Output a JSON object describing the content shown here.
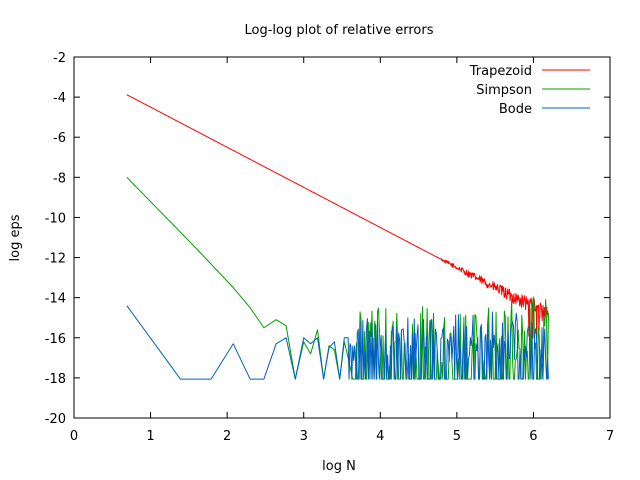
{
  "chart_data": {
    "type": "line",
    "title": "Log-log plot of relative errors",
    "xlabel": "log N",
    "ylabel": "log eps",
    "xlim": [
      0,
      7
    ],
    "ylim": [
      -20,
      -2
    ],
    "xticks": [
      0,
      1,
      2,
      3,
      4,
      5,
      6,
      7
    ],
    "yticks": [
      -20,
      -18,
      -16,
      -14,
      -12,
      -10,
      -8,
      -6,
      -4,
      -2
    ],
    "grid": false,
    "legend_position": "top-right",
    "floor": -18.06,
    "series": [
      {
        "name": "Trapezoid",
        "color": "#ff0000",
        "points": [
          [
            0.69,
            -3.88
          ],
          [
            1.5,
            -5.5
          ],
          [
            2.5,
            -7.5
          ],
          [
            3.5,
            -9.5
          ],
          [
            4.5,
            -11.5
          ],
          [
            5.0,
            -12.5
          ],
          [
            5.5,
            -13.5
          ],
          [
            5.8,
            -14.1
          ],
          [
            6.0,
            -14.4
          ],
          [
            6.2,
            -15.0
          ]
        ],
        "noise": {
          "start_x": 4.8,
          "amplitude": 0.35,
          "floor_start_x": 5.9
        }
      },
      {
        "name": "Simpson",
        "color": "#00a000",
        "points": [
          [
            0.69,
            -8.0
          ],
          [
            1.1,
            -9.6
          ],
          [
            1.61,
            -11.6
          ],
          [
            2.08,
            -13.5
          ],
          [
            2.3,
            -14.5
          ],
          [
            2.48,
            -15.5
          ],
          [
            2.64,
            -15.1
          ],
          [
            2.77,
            -15.4
          ],
          [
            2.89,
            -18.06
          ],
          [
            3.0,
            -16.2
          ],
          [
            3.09,
            -16.8
          ],
          [
            3.18,
            -15.6
          ],
          [
            3.26,
            -18.06
          ],
          [
            3.33,
            -16.4
          ],
          [
            3.4,
            -16.6
          ],
          [
            3.47,
            -18.06
          ],
          [
            3.53,
            -16.2
          ],
          [
            3.58,
            -17.0
          ]
        ],
        "noise": {
          "start_x": 3.64,
          "end_x": 6.2,
          "top_low": -17.5,
          "top_high": -14.6,
          "top_high_end": -13.9,
          "floor_prob": 0.45
        }
      },
      {
        "name": "Bode",
        "color": "#0060c0",
        "points": [
          [
            0.69,
            -14.4
          ],
          [
            1.39,
            -18.06
          ],
          [
            1.79,
            -18.06
          ],
          [
            2.08,
            -16.3
          ],
          [
            2.3,
            -18.06
          ],
          [
            2.48,
            -18.06
          ],
          [
            2.64,
            -16.3
          ],
          [
            2.77,
            -16.0
          ],
          [
            2.89,
            -18.06
          ],
          [
            3.0,
            -16.0
          ],
          [
            3.09,
            -16.3
          ],
          [
            3.18,
            -16.0
          ],
          [
            3.26,
            -18.06
          ],
          [
            3.33,
            -16.5
          ],
          [
            3.4,
            -16.2
          ],
          [
            3.47,
            -18.06
          ],
          [
            3.53,
            -16.0
          ]
        ],
        "noise": {
          "start_x": 3.58,
          "end_x": 6.2,
          "top_low": -17.2,
          "top_high": -15.0,
          "top_high_end": -14.6,
          "floor_prob": 0.4
        }
      }
    ]
  }
}
